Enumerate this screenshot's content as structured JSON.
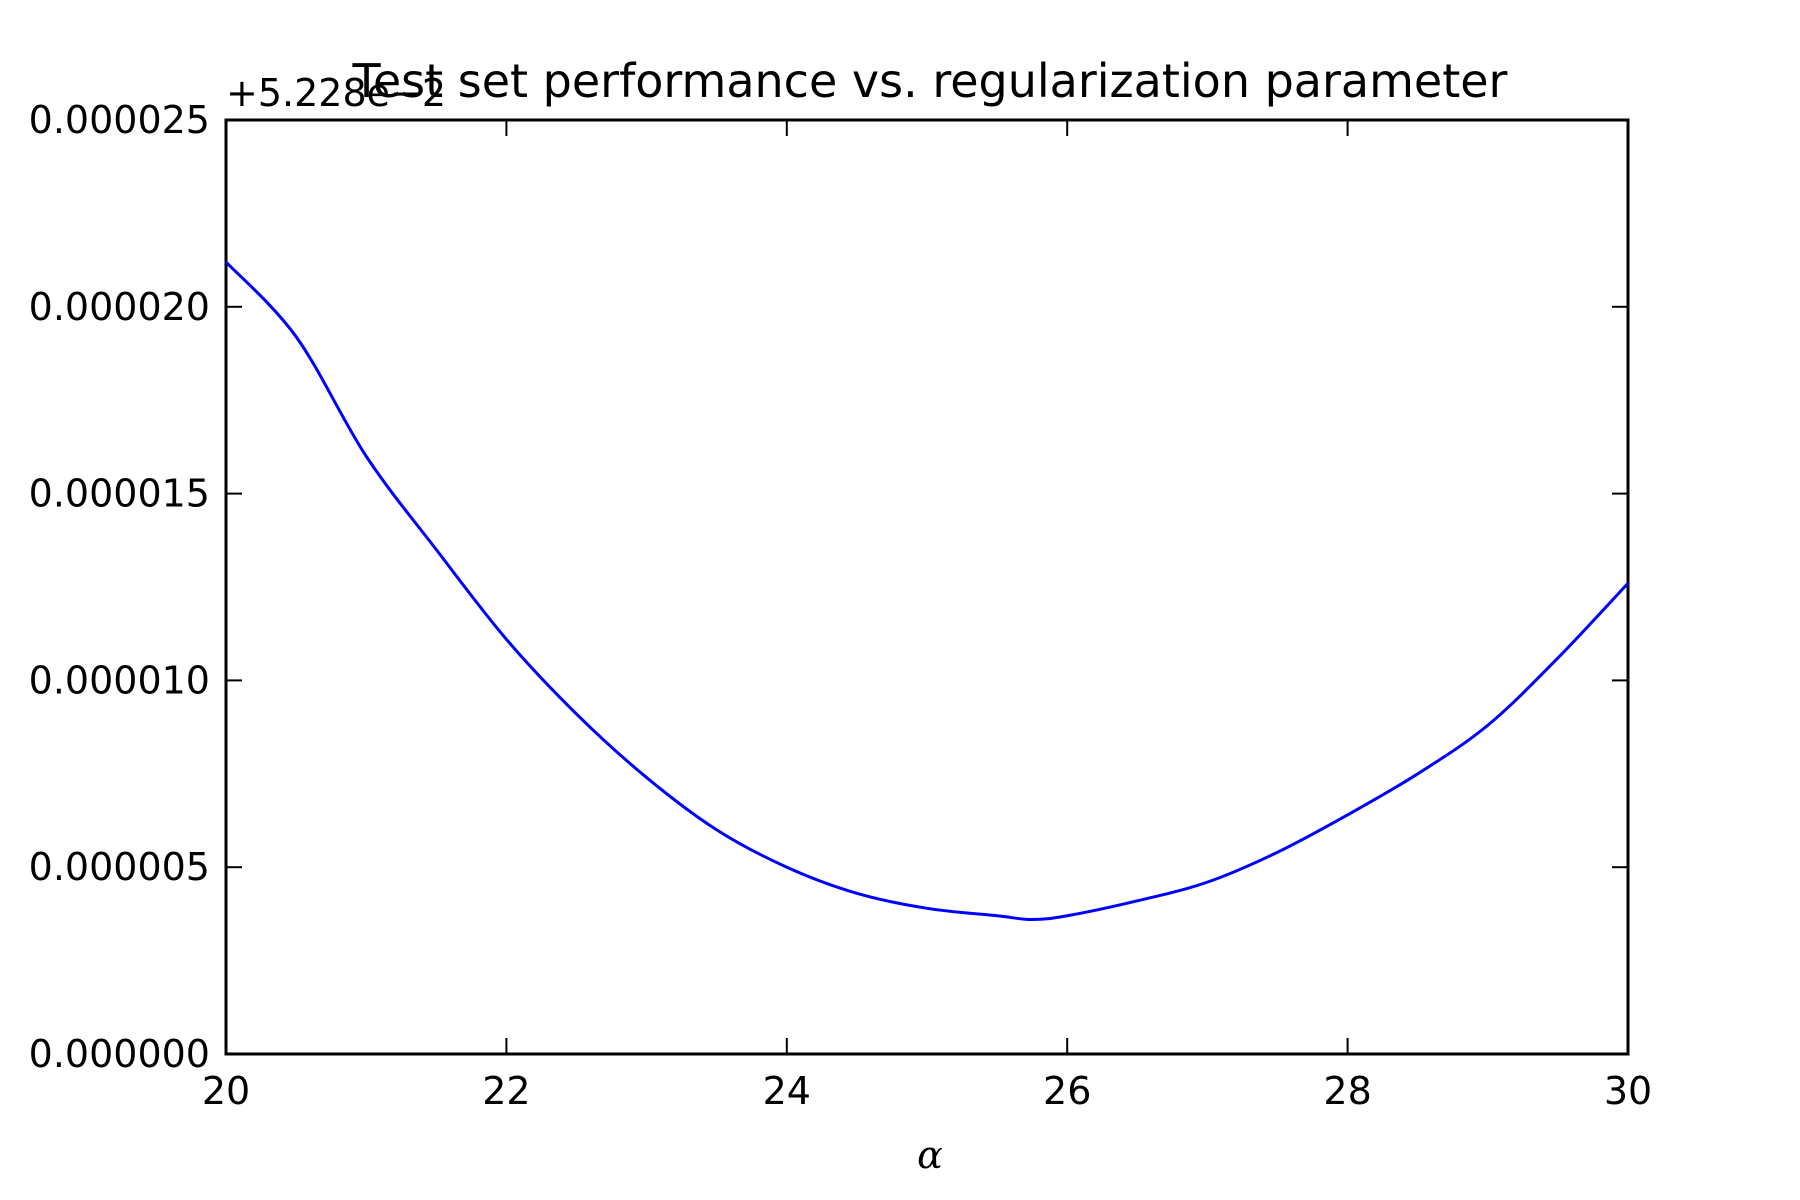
{
  "chart_data": {
    "type": "line",
    "title": "Test set performance vs. regularization parameter",
    "xlabel": "α",
    "ylabel": "",
    "y_offset_label": "+5.228e−2",
    "xlim": [
      20,
      30
    ],
    "ylim": [
      0,
      2.5e-05
    ],
    "x_ticks": [
      20,
      22,
      24,
      26,
      28,
      30
    ],
    "x_tick_labels": [
      "20",
      "22",
      "24",
      "26",
      "28",
      "30"
    ],
    "y_ticks": [
      0,
      5e-06,
      1e-05,
      1.5e-05,
      2e-05,
      2.5e-05
    ],
    "y_tick_labels": [
      "0.000000",
      "0.000005",
      "0.000010",
      "0.000015",
      "0.000020",
      "0.000025"
    ],
    "grid": false,
    "series": [
      {
        "color": "#0000ff",
        "x": [
          20,
          20.5,
          21,
          21.5,
          22,
          22.5,
          23,
          23.5,
          24,
          24.5,
          25,
          25.5,
          25.75,
          26,
          26.5,
          27,
          27.5,
          28,
          28.5,
          29,
          29.5,
          30
        ],
        "y": [
          2.12e-05,
          1.92e-05,
          1.6e-05,
          1.35e-05,
          1.11e-05,
          9.1e-06,
          7.4e-06,
          6e-06,
          5e-06,
          4.3e-06,
          3.9e-06,
          3.7e-06,
          3.6e-06,
          3.7e-06,
          4.1e-06,
          4.6e-06,
          5.4e-06,
          6.4e-06,
          7.5e-06,
          8.8e-06,
          1.06e-05,
          1.26e-05
        ]
      }
    ]
  }
}
